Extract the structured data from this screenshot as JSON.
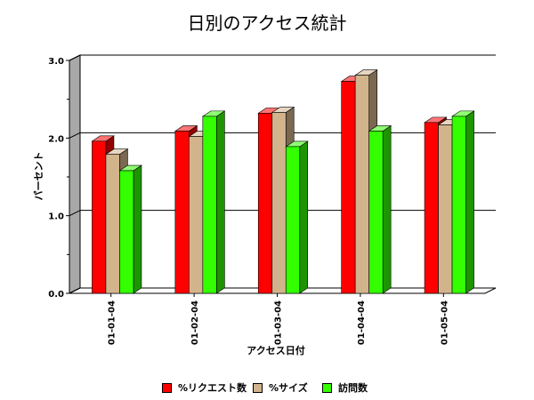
{
  "chart_data": {
    "type": "bar",
    "title": "日別のアクセス統計",
    "xlabel": "アクセス日付",
    "ylabel": "パーセント",
    "categories": [
      "01-01-04",
      "01-02-04",
      "01-03-04",
      "01-04-04",
      "01-05-04"
    ],
    "series": [
      {
        "name": "%リクエスト数",
        "color": "#ff0000",
        "values": [
          1.96,
          2.09,
          2.32,
          2.73,
          2.2
        ]
      },
      {
        "name": "%サイズ",
        "color": "#d2b48c",
        "values": [
          1.79,
          2.02,
          2.33,
          2.81,
          2.17
        ]
      },
      {
        "name": "訪問数",
        "color": "#33ff00",
        "values": [
          1.58,
          2.28,
          1.89,
          2.09,
          2.28
        ]
      }
    ],
    "ylim": [
      0,
      3
    ],
    "yticks": [
      "0.0",
      "1.0",
      "2.0",
      "3.0"
    ],
    "grid": true,
    "legend_position": "bottom"
  }
}
